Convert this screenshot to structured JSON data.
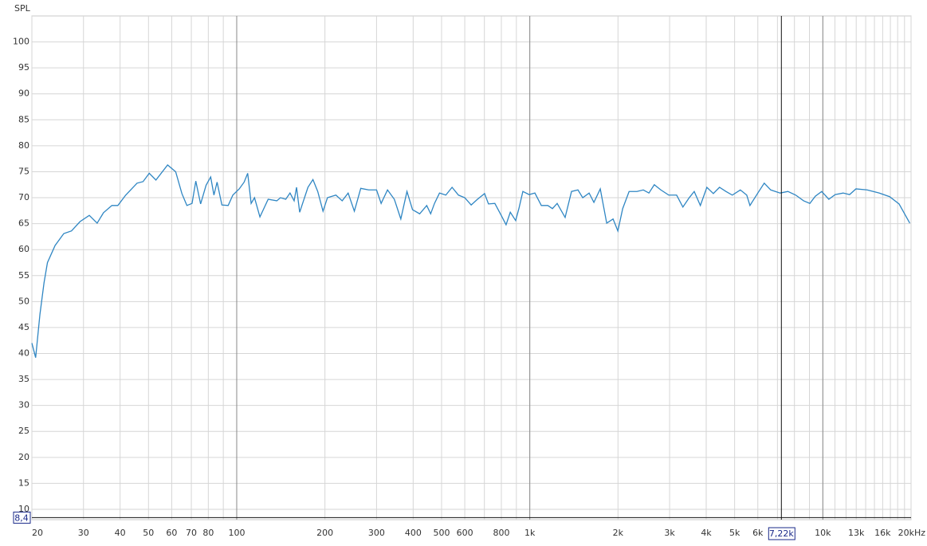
{
  "chart_data": {
    "type": "line",
    "y_label": "SPL",
    "log_x": true,
    "xlim": [
      20,
      20000
    ],
    "ylim": [
      8,
      105
    ],
    "yticks": [
      10,
      15,
      20,
      25,
      30,
      35,
      40,
      45,
      50,
      55,
      60,
      65,
      70,
      75,
      80,
      85,
      90,
      95,
      100
    ],
    "xticks": [
      20,
      30,
      40,
      50,
      60,
      70,
      80,
      100,
      200,
      300,
      400,
      500,
      600,
      800,
      {
        "value": 1000,
        "label": "1k"
      },
      {
        "value": 2000,
        "label": "2k"
      },
      {
        "value": 3000,
        "label": "3k"
      },
      {
        "value": 4000,
        "label": "4k"
      },
      {
        "value": 5000,
        "label": "5k"
      },
      {
        "value": 6000,
        "label": "6k"
      },
      {
        "value": 10000,
        "label": "10k"
      },
      {
        "value": 13000,
        "label": "13k"
      },
      {
        "value": 16000,
        "label": "16k"
      },
      {
        "value": 20000,
        "label": "20kHz"
      }
    ],
    "x_minor_grid": [
      90,
      700,
      900,
      7000,
      8000,
      9000,
      11000,
      12000,
      14000,
      15000,
      17000,
      18000,
      19000
    ],
    "x_major_grid": [
      100,
      1000,
      10000
    ],
    "grid": true,
    "color": "#2f86c3",
    "cursor": {
      "x": 7220,
      "x_label": "7,22k",
      "y": 8.4,
      "y_label": "8,4"
    },
    "x": [
      20,
      20.6,
      21.3,
      22,
      22.6,
      24,
      25.7,
      27.3,
      29.2,
      31.4,
      33.4,
      35.1,
      37.5,
      39.3,
      41.8,
      45.7,
      47.9,
      50.3,
      53,
      58.1,
      61.9,
      65,
      67.6,
      70.4,
      72.5,
      75.3,
      78.6,
      81.5,
      83.6,
      85.7,
      89,
      93.5,
      97,
      102,
      106,
      109,
      112,
      115,
      120,
      128,
      137,
      141,
      147,
      152,
      157,
      160,
      164,
      175,
      182,
      189,
      197,
      204,
      218,
      229,
      240,
      252,
      265,
      282,
      300,
      311,
      327,
      345,
      363,
      381,
      398,
      421,
      445,
      459,
      473,
      492,
      517,
      543,
      571,
      600,
      631,
      663,
      701,
      723,
      760,
      799,
      830,
      858,
      895,
      918,
      947,
      995,
      1041,
      1095,
      1152,
      1195,
      1240,
      1320,
      1388,
      1460,
      1516,
      1594,
      1655,
      1740,
      1830,
      1924,
      1998,
      2075,
      2182,
      2320,
      2440,
      2550,
      2660,
      2800,
      2980,
      3170,
      3330,
      3500,
      3640,
      3820,
      4020,
      4230,
      4440,
      4670,
      4910,
      5230,
      5500,
      5640,
      6000,
      6310,
      6640,
      7150,
      7600,
      8080,
      8600,
      9030,
      9430,
      9910,
      10480,
      11020,
      11730,
      12340,
      12970,
      14160,
      15560,
      16900,
      18200,
      19800
    ],
    "values": [
      42,
      39.2,
      47.5,
      53.6,
      57.5,
      60.8,
      63.1,
      63.6,
      65.4,
      66.6,
      65.1,
      67.1,
      68.5,
      68.5,
      70.5,
      72.8,
      73.1,
      74.7,
      73.4,
      76.3,
      75,
      70.8,
      68.5,
      68.9,
      73.2,
      68.8,
      72.4,
      74,
      70.5,
      73,
      68.6,
      68.5,
      70.5,
      71.7,
      73,
      74.7,
      68.9,
      70,
      66.3,
      69.7,
      69.4,
      70,
      69.7,
      70.9,
      69.4,
      72,
      67.2,
      72,
      73.5,
      71.2,
      67.4,
      70,
      70.5,
      69.4,
      70.9,
      67.4,
      71.8,
      71.5,
      71.5,
      68.9,
      71.5,
      69.7,
      65.9,
      71.2,
      67.7,
      66.9,
      68.5,
      66.9,
      68.9,
      70.9,
      70.5,
      72,
      70.5,
      70,
      68.6,
      69.7,
      70.8,
      68.8,
      68.9,
      66.6,
      64.8,
      67.2,
      65.6,
      67.9,
      71.2,
      70.6,
      70.9,
      68.5,
      68.5,
      67.9,
      68.9,
      66.2,
      71.2,
      71.5,
      70,
      70.9,
      69.1,
      71.7,
      65.1,
      65.9,
      63.6,
      67.9,
      71.2,
      71.2,
      71.5,
      70.9,
      72.5,
      71.5,
      70.5,
      70.5,
      68.2,
      70,
      71.2,
      68.5,
      72,
      70.8,
      72,
      71.2,
      70.5,
      71.5,
      70.5,
      68.5,
      70.9,
      72.8,
      71.5,
      70.9,
      71.2,
      70.5,
      69.4,
      68.9,
      70.3,
      71.2,
      69.7,
      70.6,
      70.9,
      70.6,
      71.7,
      71.5,
      70.9,
      70.2,
      68.8,
      65.1
    ]
  }
}
